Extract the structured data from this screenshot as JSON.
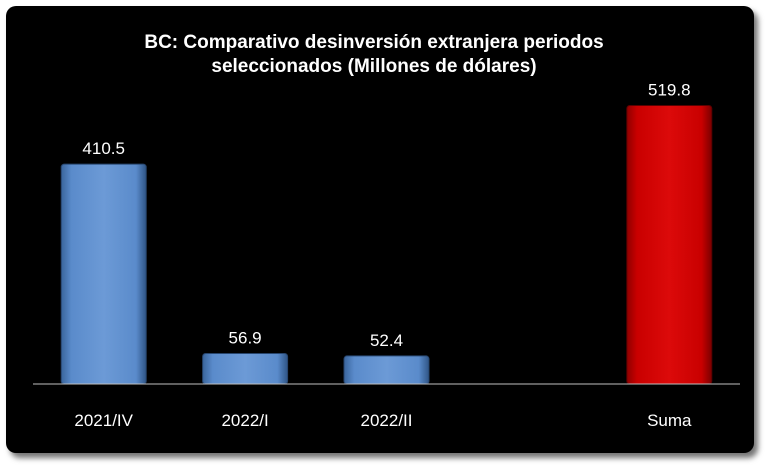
{
  "chart_data": {
    "type": "bar",
    "title": "BC: Comparativo desinversión extranjera periodos",
    "subtitle": "seleccionados (Millones de dólares)",
    "categories": [
      "2021/IV",
      "2022/I",
      "2022/II",
      "",
      "Suma"
    ],
    "values": [
      410.5,
      56.9,
      52.4,
      null,
      519.8
    ],
    "data_labels": [
      "410.5",
      "56.9",
      "52.4",
      "",
      "519.8"
    ],
    "bar_colors": [
      "#4f81bd",
      "#4f81bd",
      "#4f81bd",
      null,
      "#c00000"
    ],
    "ylim": [
      0,
      560
    ],
    "grid": false,
    "legend": "none",
    "background": "#000000",
    "text_color": "#ffffff"
  }
}
